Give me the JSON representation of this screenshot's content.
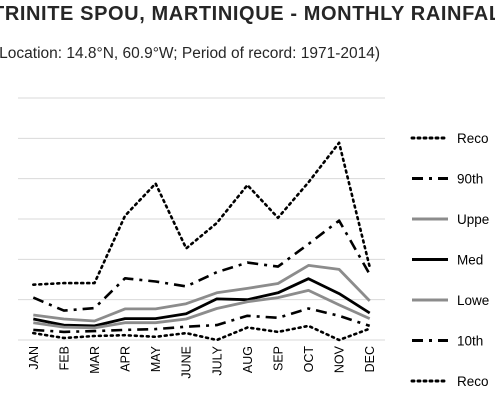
{
  "chart_data": {
    "type": "line",
    "title": "TRINITE SPOU, MARTINIQUE - MONTHLY RAINFALL",
    "subtitle": "(Location: 14.8°N, 60.9°W; Period of record: 1971-2014)",
    "categories": [
      "JAN",
      "FEB",
      "MAR",
      "APR",
      "MAY",
      "JUNE",
      "JULY",
      "AUG",
      "SEP",
      "OCT",
      "NOV",
      "DEC"
    ],
    "ylim": [
      0,
      600
    ],
    "yticks": [
      0,
      100,
      200,
      300,
      400,
      500,
      600
    ],
    "ytick_labels": [
      "",
      "",
      "",
      "",
      "",
      "",
      ""
    ],
    "grid": true,
    "legend_position": "right",
    "series": [
      {
        "name": "Reco",
        "style": "dotted",
        "color": "#000000",
        "values": [
          137,
          141,
          141,
          308,
          388,
          227,
          290,
          384,
          303,
          391,
          489,
          181
        ]
      },
      {
        "name": "90th",
        "style": "dashdot",
        "color": "#000000",
        "values": [
          105,
          73,
          79,
          153,
          145,
          133,
          168,
          192,
          182,
          238,
          296,
          163
        ]
      },
      {
        "name": "Uppe",
        "style": "solid",
        "color": "#8c8c8c",
        "values": [
          62,
          52,
          47,
          77,
          77,
          90,
          117,
          128,
          140,
          185,
          175,
          97
        ]
      },
      {
        "name": "Med",
        "style": "solid",
        "color": "#000000",
        "values": [
          52,
          37,
          35,
          53,
          53,
          65,
          102,
          100,
          117,
          152,
          115,
          67
        ]
      },
      {
        "name": "Lowe",
        "style": "solid",
        "color": "#8c8c8c",
        "values": [
          43,
          32,
          30,
          43,
          43,
          52,
          78,
          95,
          105,
          123,
          87,
          53
        ]
      },
      {
        "name": "10th",
        "style": "dashdot",
        "color": "#000000",
        "values": [
          25,
          20,
          22,
          25,
          27,
          33,
          37,
          60,
          55,
          78,
          60,
          35
        ]
      },
      {
        "name": "Reco",
        "style": "dotted",
        "color": "#000000",
        "values": [
          17,
          5,
          10,
          12,
          8,
          17,
          0,
          31,
          20,
          35,
          0,
          28
        ]
      }
    ]
  }
}
